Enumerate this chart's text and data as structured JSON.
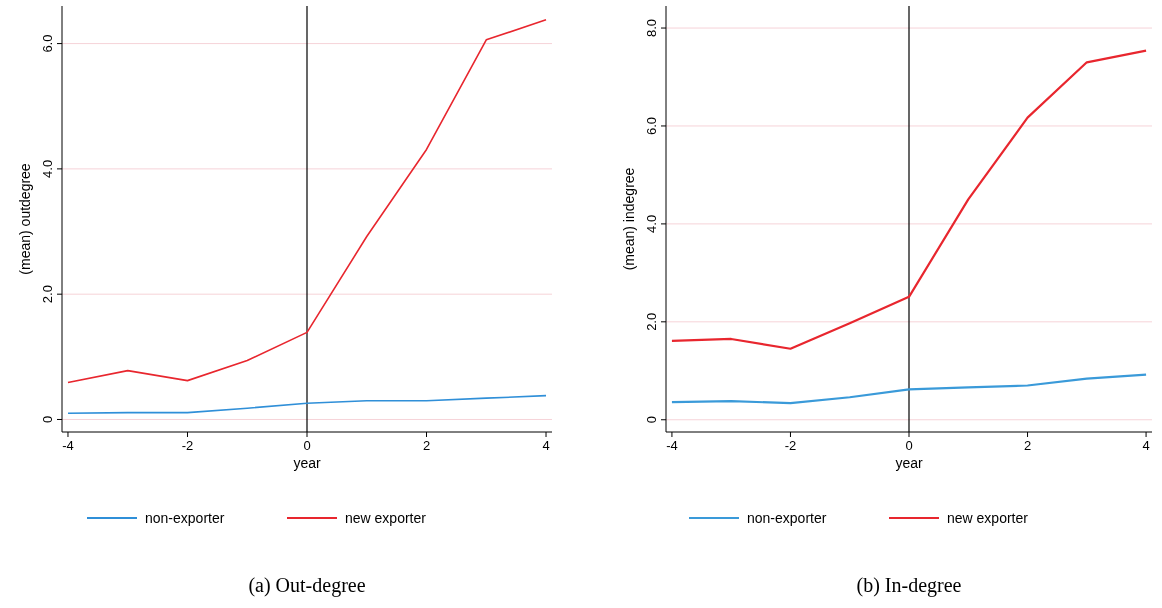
{
  "chart_data": [
    {
      "type": "line",
      "xlabel": "year",
      "ylabel": "(mean) outdegree",
      "x": [
        -4,
        -3,
        -2,
        -1,
        0,
        1,
        2,
        3,
        4
      ],
      "xlim": [
        -4.1,
        4.1
      ],
      "xticks": [
        -4,
        -2,
        0,
        2,
        4
      ],
      "ylim": [
        -0.2,
        6.6
      ],
      "yticks": [
        0,
        {
          "value": 2,
          "label": "2.0"
        },
        {
          "value": 4,
          "label": "4.0"
        },
        {
          "value": 6,
          "label": "6.0"
        }
      ],
      "grid": "y",
      "legend": "bottom",
      "ref_lines": [
        {
          "axis": "x",
          "value": 0,
          "color": "#000000"
        }
      ],
      "annotations": [
        "(a)  Out-degree"
      ],
      "series": [
        {
          "name": "non-exporter",
          "color": "#2f8fd8",
          "values": [
            0.1,
            0.11,
            0.11,
            0.18,
            0.26,
            0.3,
            0.3,
            0.34,
            0.38
          ]
        },
        {
          "name": "new exporter",
          "color": "#e8262e",
          "values": [
            0.59,
            0.78,
            0.62,
            0.94,
            1.39,
            2.92,
            4.31,
            6.06,
            6.38
          ]
        }
      ]
    },
    {
      "type": "line",
      "xlabel": "year",
      "ylabel": "(mean) indegree",
      "x": [
        -4,
        -3,
        -2,
        -1,
        0,
        1,
        2,
        3,
        4
      ],
      "xlim": [
        -4.1,
        4.1
      ],
      "xticks": [
        -4,
        -2,
        0,
        2,
        4
      ],
      "ylim": [
        -0.25,
        8.45
      ],
      "yticks": [
        0,
        {
          "value": 2,
          "label": "2.0"
        },
        {
          "value": 4,
          "label": "4.0"
        },
        {
          "value": 6,
          "label": "6.0"
        },
        {
          "value": 8,
          "label": "8.0"
        }
      ],
      "grid": "y",
      "legend": "bottom",
      "ref_lines": [
        {
          "axis": "x",
          "value": 0,
          "color": "#000000"
        }
      ],
      "annotations": [
        "(b)  In-degree"
      ],
      "series": [
        {
          "name": "non-exporter",
          "color": "#3a9ad9",
          "values": [
            0.36,
            0.38,
            0.34,
            0.46,
            0.62,
            0.66,
            0.7,
            0.84,
            0.92
          ]
        },
        {
          "name": "new exporter",
          "color": "#e8262e",
          "values": [
            1.61,
            1.65,
            1.45,
            1.97,
            2.51,
            4.5,
            6.17,
            7.3,
            7.54
          ]
        }
      ]
    }
  ]
}
